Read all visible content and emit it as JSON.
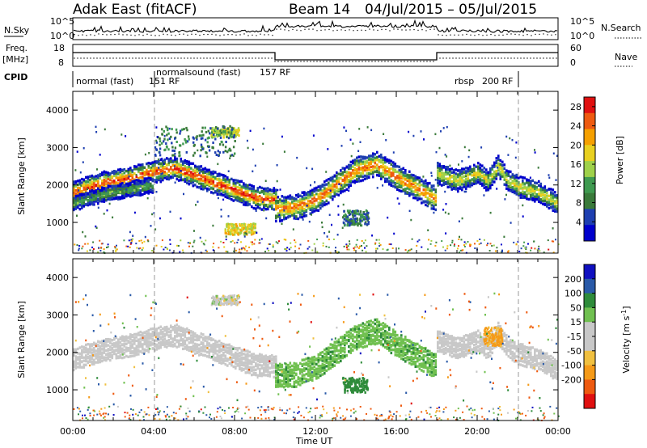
{
  "header": {
    "station": "Adak East (fitACF)",
    "beam": "Beam 14",
    "date_range": "04/Jul/2015 – 05/Jul/2015"
  },
  "panels": {
    "nsky_label": "N.Sky",
    "nsearch_label": "N.Search",
    "freq_label_1": "Freq.",
    "freq_label_2": "[MHz]",
    "nave_label": "Nave",
    "cpid_label": "CPID",
    "nsky_ticks": [
      "10^5",
      "10^0"
    ],
    "nsearch_ticks": [
      "10^5",
      "10^0"
    ],
    "freq_ticks": [
      "18",
      "8"
    ],
    "nave_ticks": [
      "60",
      "0"
    ]
  },
  "cpid": [
    {
      "label": "normal (fast)",
      "rf": "151 RF",
      "start": 0.0,
      "end": 4.0
    },
    {
      "label": "normalsound (fast)",
      "rf": "157 RF",
      "start": 4.0,
      "end": 22.0
    },
    {
      "label": "rbsp",
      "rf": "200 RF",
      "start": 22.0,
      "end": 24.0
    }
  ],
  "colors": {
    "power": [
      "#0000cc",
      "#1e3fb0",
      "#3a7a3a",
      "#3f9a50",
      "#9fd14a",
      "#e8d020",
      "#f5a000",
      "#ee5a10",
      "#e01010"
    ],
    "velocity": [
      "#e01010",
      "#ee5a10",
      "#f59a18",
      "#f0c040",
      "#c8c8c8",
      "#c8c8c8",
      "#70c050",
      "#2e8b3a",
      "#2a5aa8",
      "#1010c0"
    ]
  },
  "chart_data": [
    {
      "type": "heatmap",
      "name": "power",
      "xlabel": "Time UT",
      "ylabel": "Slant Range [km]",
      "xlim": [
        0,
        24
      ],
      "ylim": [
        180,
        4500
      ],
      "y_ticks": [
        "1000",
        "2000",
        "3000",
        "4000"
      ],
      "colorbar_label": "Power [dB]",
      "colorbar_ticks": [
        "4",
        "8",
        "12",
        "16",
        "20",
        "24",
        "28"
      ],
      "colorbar_range": [
        0,
        30
      ],
      "bands": [
        {
          "x": [
            0,
            1.5,
            3,
            4,
            5,
            6,
            7,
            8,
            9,
            10
          ],
          "y": [
            1800,
            2050,
            2200,
            2350,
            2450,
            2250,
            2050,
            1850,
            1650,
            1600
          ],
          "width": 180,
          "peak": 26
        },
        {
          "x": [
            0,
            1.5,
            3,
            4
          ],
          "y": [
            1500,
            1750,
            1900,
            2000
          ],
          "width": 120,
          "peak": 12
        },
        {
          "x": [
            10,
            11,
            12,
            13,
            14,
            15,
            16,
            17,
            18
          ],
          "y": [
            1350,
            1400,
            1600,
            2000,
            2400,
            2550,
            2200,
            1900,
            1600
          ],
          "width": 200,
          "peak": 24
        },
        {
          "x": [
            18,
            19,
            20,
            20.5,
            21,
            21.5,
            22,
            23,
            24
          ],
          "y": [
            2300,
            2100,
            2300,
            2100,
            2500,
            2100,
            1950,
            1800,
            1500
          ],
          "width": 170,
          "peak": 18
        }
      ],
      "patches": [
        {
          "x": [
            6.8,
            8.2
          ],
          "y": [
            3300,
            3550
          ],
          "level": 16
        },
        {
          "x": [
            7.5,
            9
          ],
          "y": [
            700,
            1000
          ],
          "level": 18
        },
        {
          "x": [
            13.3,
            14.6
          ],
          "y": [
            950,
            1350
          ],
          "level": 8
        },
        {
          "x": [
            4,
            8
          ],
          "y": [
            2800,
            3600
          ],
          "level": 8,
          "sparse": true
        }
      ]
    },
    {
      "type": "heatmap",
      "name": "velocity",
      "xlabel": "Time UT",
      "ylabel": "Slant Range [km]",
      "xlim": [
        0,
        24
      ],
      "ylim": [
        180,
        4500
      ],
      "x_ticks": [
        "00:00",
        "04:00",
        "08:00",
        "12:00",
        "16:00",
        "20:00",
        "00:00"
      ],
      "y_ticks": [
        "1000",
        "2000",
        "3000",
        "4000"
      ],
      "colorbar_label": "Velocity [m s^-1]",
      "colorbar_ticks": [
        "200",
        "100",
        "50",
        "15",
        "-15",
        "-50",
        "-100",
        "-200"
      ],
      "colorbar_range": [
        -250,
        250
      ],
      "bands": [
        {
          "x": [
            0,
            1.5,
            3,
            4,
            5,
            6,
            7,
            8,
            9,
            10
          ],
          "y": [
            1800,
            2050,
            2200,
            2350,
            2450,
            2250,
            2050,
            1850,
            1650,
            1600
          ],
          "width": 180,
          "velocity": 0
        },
        {
          "x": [
            10,
            11,
            12,
            13,
            14,
            15,
            16,
            17,
            18
          ],
          "y": [
            1350,
            1400,
            1600,
            2000,
            2400,
            2550,
            2200,
            1900,
            1600
          ],
          "width": 200,
          "velocity": 40
        },
        {
          "x": [
            18,
            19,
            20,
            20.5,
            21,
            21.5,
            22,
            23,
            24
          ],
          "y": [
            2300,
            2100,
            2300,
            2100,
            2500,
            2100,
            1950,
            1800,
            1500
          ],
          "width": 170,
          "velocity": 0
        }
      ],
      "patches": [
        {
          "x": [
            13.3,
            14.6
          ],
          "y": [
            950,
            1350
          ],
          "velocity": 80
        },
        {
          "x": [
            6.8,
            8.2
          ],
          "y": [
            3300,
            3550
          ],
          "velocity": 0
        },
        {
          "x": [
            20.3,
            21.2
          ],
          "y": [
            2200,
            2700
          ],
          "velocity": -60
        }
      ]
    }
  ]
}
